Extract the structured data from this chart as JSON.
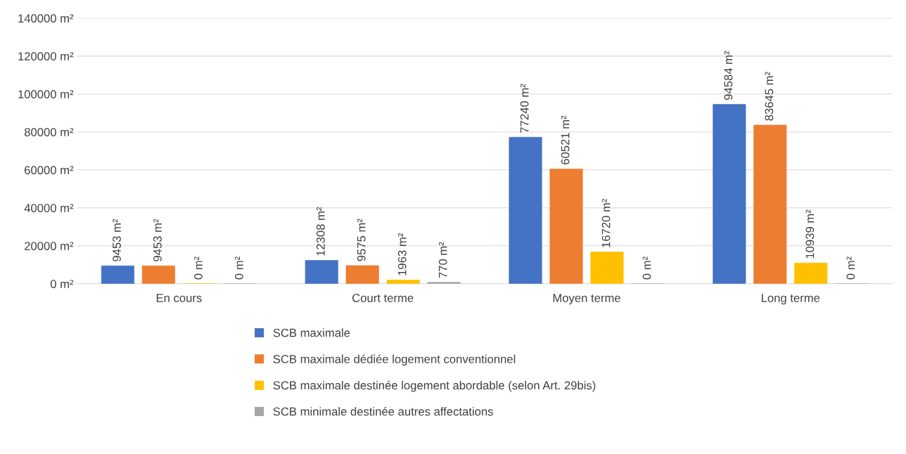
{
  "chart_data": {
    "type": "bar",
    "categories": [
      "En cours",
      "Court terme",
      "Moyen terme",
      "Long terme"
    ],
    "series": [
      {
        "name": "SCB maximale",
        "color": "#4472c4",
        "values": [
          9453,
          12308,
          77240,
          94584
        ],
        "value_labels": [
          "9453 m²",
          "12308 m²",
          "77240 m²",
          "94584 m²"
        ]
      },
      {
        "name": "SCB maximale dédiée logement conventionnel",
        "color": "#ed7d31",
        "values": [
          9453,
          9575,
          60521,
          83645
        ],
        "value_labels": [
          "9453 m²",
          "9575 m²",
          "60521 m²",
          "83645 m²"
        ]
      },
      {
        "name": "SCB maximale destinée logement abordable (selon Art. 29bis)",
        "color": "#ffc000",
        "values": [
          0,
          1963,
          16720,
          10939
        ],
        "value_labels": [
          "0 m²",
          "1963 m²",
          "16720 m²",
          "10939 m²"
        ]
      },
      {
        "name": "SCB minimale destinée autres affectations",
        "color": "#a5a5a5",
        "values": [
          0,
          770,
          0,
          0
        ],
        "value_labels": [
          "0 m²",
          "770 m²",
          "0 m²",
          "0 m²"
        ]
      }
    ],
    "ylim": [
      0,
      140000
    ],
    "yticks": [
      {
        "value": 0,
        "label": "0 m²"
      },
      {
        "value": 20000,
        "label": "20000 m²"
      },
      {
        "value": 40000,
        "label": "40000 m²"
      },
      {
        "value": 60000,
        "label": "60000 m²"
      },
      {
        "value": 80000,
        "label": "80000 m²"
      },
      {
        "value": 100000,
        "label": "100000 m²"
      },
      {
        "value": 120000,
        "label": "120000 m²"
      },
      {
        "value": 140000,
        "label": "140000 m²"
      }
    ],
    "grid": "y",
    "legend": "bottom"
  }
}
